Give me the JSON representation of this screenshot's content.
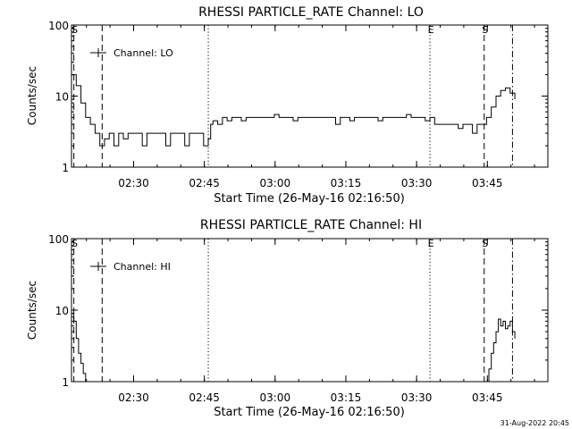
{
  "footer": {
    "timestamp": "31-Aug-2022 20:45"
  },
  "chart_data": [
    {
      "type": "line",
      "title": "RHESSI PARTICLE_RATE Channel: LO",
      "xlabel": "Start Time (26-May-16 02:16:50)",
      "ylabel": "Counts/sec",
      "y_scale": "log",
      "ylim": [
        1,
        100
      ],
      "y_ticks": [
        "1",
        "10",
        "100"
      ],
      "x_unit": "minutes since 02:16:50",
      "xlim": [
        0,
        101
      ],
      "x_ticks": [
        {
          "label": "02:30",
          "value": 13.17
        },
        {
          "label": "02:45",
          "value": 28.17
        },
        {
          "label": "03:00",
          "value": 43.17
        },
        {
          "label": "03:15",
          "value": 58.17
        },
        {
          "label": "03:30",
          "value": 73.17
        },
        {
          "label": "03:45",
          "value": 88.17
        }
      ],
      "legend": {
        "entries": [
          "Channel: LO"
        ],
        "position": "top-left"
      },
      "event_markers": [
        {
          "label": "S",
          "value": 0.5,
          "style": "dashed"
        },
        {
          "label": "",
          "value": 6.5,
          "style": "dashed"
        },
        {
          "label": "",
          "value": 29.0,
          "style": "dotted"
        },
        {
          "label": "E",
          "value": 76.0,
          "style": "dotted"
        },
        {
          "label": "S",
          "value": 87.5,
          "style": "dashed"
        },
        {
          "label": "",
          "value": 93.5,
          "style": "dashdot"
        }
      ],
      "series": [
        {
          "name": "Channel: LO",
          "x": [
            0,
            1,
            2,
            3,
            4,
            5,
            6,
            7,
            8,
            9,
            10,
            11,
            12,
            13,
            14,
            15,
            16,
            17,
            18,
            19,
            20,
            21,
            22,
            23,
            24,
            25,
            26,
            27,
            28,
            29,
            29.5,
            30,
            31,
            32,
            33,
            34,
            35,
            36,
            37,
            38,
            39,
            40,
            41,
            42,
            43,
            44,
            45,
            46,
            47,
            48,
            49,
            50,
            51,
            52,
            53,
            54,
            55,
            56,
            57,
            58,
            59,
            60,
            61,
            62,
            63,
            64,
            65,
            66,
            67,
            68,
            69,
            70,
            71,
            72,
            73,
            74,
            75,
            76,
            77,
            78,
            79,
            80,
            81,
            82,
            83,
            84,
            85,
            86,
            87,
            88,
            89,
            90,
            91,
            92,
            93,
            94
          ],
          "y": [
            20,
            14,
            8,
            5,
            4,
            3,
            2,
            2.5,
            3,
            2,
            3,
            2.5,
            3,
            3,
            3,
            2,
            3,
            3,
            3,
            3,
            2,
            3,
            3,
            3,
            2,
            3,
            3,
            3,
            2,
            2.5,
            4,
            4.5,
            4,
            5,
            4.5,
            5,
            5,
            4.5,
            5,
            5,
            5,
            5,
            5,
            5,
            5.5,
            5,
            5,
            5,
            4.5,
            5,
            5,
            5,
            5,
            5,
            5,
            5,
            5,
            4,
            5,
            5,
            4.5,
            5,
            5,
            5,
            5,
            5,
            4.5,
            5,
            5,
            5,
            5,
            5,
            5.5,
            5,
            5,
            5,
            4.5,
            5,
            4,
            4,
            4,
            4,
            4,
            3.5,
            4,
            4,
            3,
            4,
            4,
            5,
            7,
            10,
            12,
            13,
            11,
            9
          ]
        }
      ]
    },
    {
      "type": "line",
      "title": "RHESSI PARTICLE_RATE Channel: HI",
      "xlabel": "Start Time (26-May-16 02:16:50)",
      "ylabel": "Counts/sec",
      "y_scale": "log",
      "ylim": [
        1,
        100
      ],
      "y_ticks": [
        "1",
        "10",
        "100"
      ],
      "x_unit": "minutes since 02:16:50",
      "xlim": [
        0,
        101
      ],
      "x_ticks": [
        {
          "label": "02:30",
          "value": 13.17
        },
        {
          "label": "02:45",
          "value": 28.17
        },
        {
          "label": "03:00",
          "value": 43.17
        },
        {
          "label": "03:15",
          "value": 58.17
        },
        {
          "label": "03:30",
          "value": 73.17
        },
        {
          "label": "03:45",
          "value": 88.17
        }
      ],
      "legend": {
        "entries": [
          "Channel: HI"
        ],
        "position": "top-left"
      },
      "event_markers": [
        {
          "label": "S",
          "value": 0.5,
          "style": "dashed"
        },
        {
          "label": "",
          "value": 6.5,
          "style": "dashed"
        },
        {
          "label": "",
          "value": 29.0,
          "style": "dotted"
        },
        {
          "label": "E",
          "value": 76.0,
          "style": "dotted"
        },
        {
          "label": "S",
          "value": 87.5,
          "style": "dashed"
        },
        {
          "label": "",
          "value": 93.5,
          "style": "dashdot"
        }
      ],
      "series": [
        {
          "name": "Channel: HI",
          "x": [
            0,
            0.5,
            1,
            1.5,
            2,
            2.5,
            3
          ],
          "y": [
            9,
            7,
            4,
            2.5,
            1.8,
            1.3,
            0.9
          ]
        },
        {
          "name": "Channel: HI",
          "x": [
            87.8,
            88.5,
            89,
            89.5,
            90,
            90.5,
            91,
            91.5,
            92,
            92.5,
            93,
            93.5,
            94
          ],
          "y": [
            0.9,
            1.5,
            2.5,
            3.5,
            5,
            7.5,
            6,
            7,
            5.5,
            6,
            7,
            5,
            4
          ]
        }
      ]
    }
  ]
}
